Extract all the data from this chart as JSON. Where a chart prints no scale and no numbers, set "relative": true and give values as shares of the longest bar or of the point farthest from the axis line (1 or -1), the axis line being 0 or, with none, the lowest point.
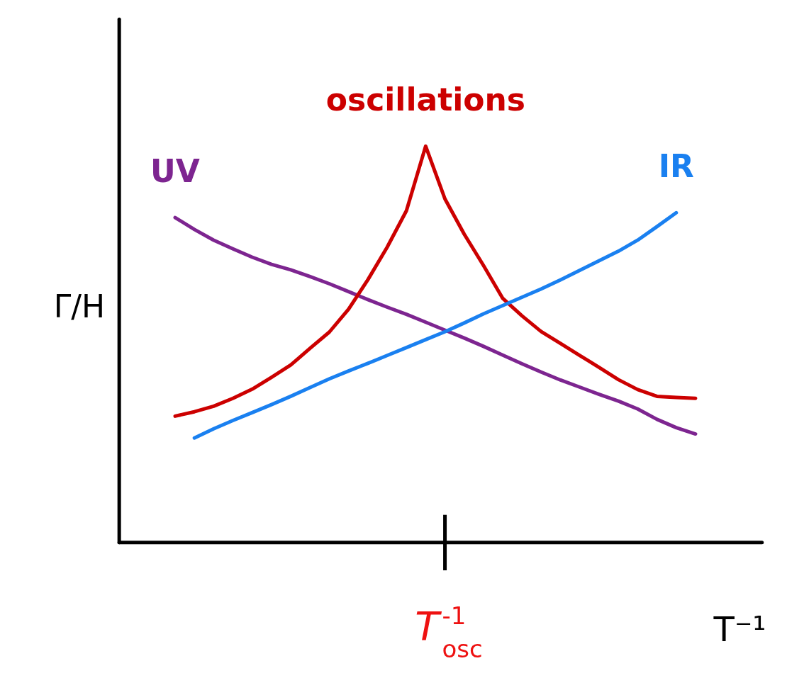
{
  "chart_data": {
    "type": "line",
    "relative": true,
    "xlabel": "T⁻¹",
    "ylabel": "Γ/H",
    "categories": [
      null,
      null,
      null,
      null,
      null,
      null,
      null,
      null,
      null,
      null,
      null,
      null,
      null,
      null,
      null,
      null,
      null,
      null,
      null,
      null,
      null,
      null,
      null,
      null,
      null,
      null,
      null,
      null,
      null
    ],
    "annotations": [
      "T$^{-1}$$_{osc}$"
    ],
    "series": [
      {
        "name": "UV",
        "color": "#7d2590",
        "values": [
          0.82,
          0.79,
          0.763,
          0.741,
          0.72,
          0.702,
          0.688,
          0.671,
          0.653,
          0.633,
          0.613,
          0.594,
          0.576,
          0.556,
          0.536,
          0.516,
          0.495,
          0.473,
          0.451,
          0.43,
          0.41,
          0.392,
          0.374,
          0.357,
          0.337,
          0.311,
          0.29,
          0.274,
          null
        ]
      },
      {
        "name": "oscillations",
        "color": "#cc0000",
        "values": [
          0.319,
          0.33,
          0.344,
          0.364,
          0.387,
          0.417,
          0.448,
          0.49,
          0.531,
          0.589,
          0.663,
          0.745,
          0.837,
          1.0,
          0.867,
          0.778,
          0.699,
          0.616,
          0.572,
          0.532,
          0.502,
          0.472,
          0.442,
          0.411,
          0.386,
          0.369,
          0.366,
          0.364,
          null
        ]
      },
      {
        "name": "IR",
        "color": "#1a80f0",
        "values": [
          null,
          0.264,
          0.287,
          0.308,
          0.328,
          0.348,
          0.369,
          0.391,
          0.413,
          0.433,
          0.452,
          0.472,
          0.492,
          0.512,
          0.532,
          0.554,
          0.577,
          0.598,
          0.619,
          0.64,
          0.663,
          0.687,
          0.711,
          0.735,
          0.763,
          0.797,
          0.832,
          null,
          null
        ]
      }
    ],
    "marker": "none",
    "line_style": "solid",
    "legend": false
  }
}
